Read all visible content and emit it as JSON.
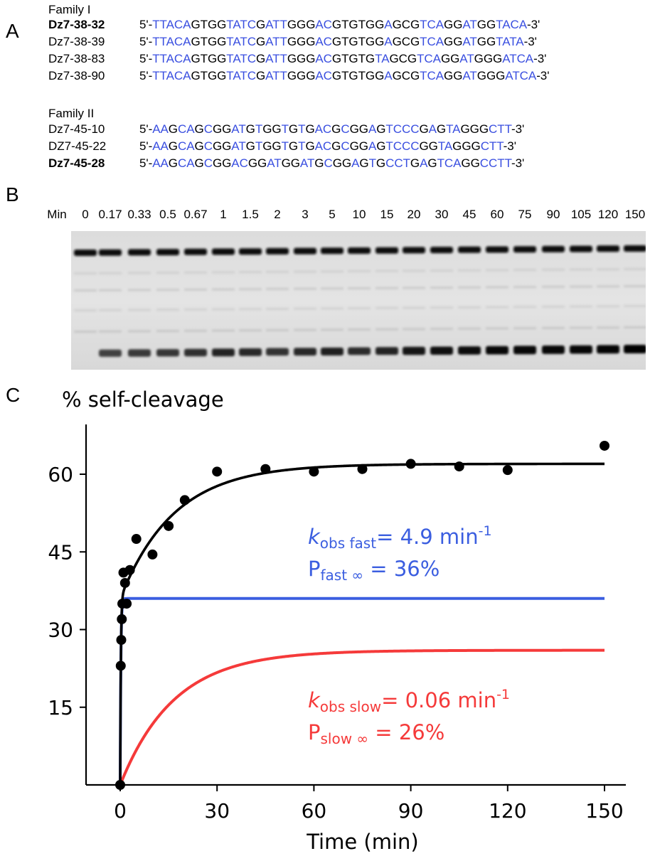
{
  "panel_a": {
    "letter": "A",
    "family1": {
      "title": "Family I",
      "rows": [
        {
          "name": "Dz7-38-32",
          "bold": true,
          "segments": [
            [
              "k",
              "5'-"
            ],
            [
              "b",
              "TTACA"
            ],
            [
              "k",
              "GTGG"
            ],
            [
              "b",
              "TATC"
            ],
            [
              "k",
              "G"
            ],
            [
              "b",
              "ATT"
            ],
            [
              "k",
              "GGG"
            ],
            [
              "b",
              "AC"
            ],
            [
              "k",
              "GTGTGG"
            ],
            [
              "b",
              "A"
            ],
            [
              "k",
              "GCG"
            ],
            [
              "b",
              "TCA"
            ],
            [
              "k",
              "GG"
            ],
            [
              "b",
              "AT"
            ],
            [
              "k",
              "GG"
            ],
            [
              "b",
              "TACA"
            ],
            [
              "k",
              "-3'"
            ]
          ]
        },
        {
          "name": "Dz7-38-39",
          "bold": false,
          "segments": [
            [
              "k",
              "5'-"
            ],
            [
              "b",
              "TTACA"
            ],
            [
              "k",
              "GTGG"
            ],
            [
              "b",
              "TATC"
            ],
            [
              "k",
              "G"
            ],
            [
              "b",
              "ATT"
            ],
            [
              "k",
              "GGG"
            ],
            [
              "b",
              "AC"
            ],
            [
              "k",
              "GTGTGG"
            ],
            [
              "b",
              "A"
            ],
            [
              "k",
              "GCG"
            ],
            [
              "b",
              "TCA"
            ],
            [
              "k",
              "GG"
            ],
            [
              "b",
              "AT"
            ],
            [
              "k",
              "GG"
            ],
            [
              "b",
              "TATA"
            ],
            [
              "k",
              "-3'"
            ]
          ]
        },
        {
          "name": "Dz7-38-83",
          "bold": false,
          "segments": [
            [
              "k",
              "5'-"
            ],
            [
              "b",
              "TTACA"
            ],
            [
              "k",
              "GTGG"
            ],
            [
              "b",
              "TATC"
            ],
            [
              "k",
              "G"
            ],
            [
              "b",
              "ATT"
            ],
            [
              "k",
              "GGG"
            ],
            [
              "b",
              "AC"
            ],
            [
              "k",
              "GTGTG"
            ],
            [
              "b",
              "TA"
            ],
            [
              "k",
              "GCG"
            ],
            [
              "b",
              "TCA"
            ],
            [
              "k",
              "GG"
            ],
            [
              "b",
              "AT"
            ],
            [
              "k",
              "GGG"
            ],
            [
              "b",
              "ATCA"
            ],
            [
              "k",
              "-3'"
            ]
          ]
        },
        {
          "name": "Dz7-38-90",
          "bold": false,
          "segments": [
            [
              "k",
              "5'-"
            ],
            [
              "b",
              "TTACA"
            ],
            [
              "k",
              "GTGG"
            ],
            [
              "b",
              "TATC"
            ],
            [
              "k",
              "G"
            ],
            [
              "b",
              "ATT"
            ],
            [
              "k",
              "GGG"
            ],
            [
              "b",
              "AC"
            ],
            [
              "k",
              "GTGTGG"
            ],
            [
              "b",
              "A"
            ],
            [
              "k",
              "GCG"
            ],
            [
              "b",
              "TCA"
            ],
            [
              "k",
              "GG"
            ],
            [
              "b",
              "AT"
            ],
            [
              "k",
              "GGG"
            ],
            [
              "b",
              "ATCA"
            ],
            [
              "k",
              "-3'"
            ]
          ]
        }
      ]
    },
    "family2": {
      "title": "Family II",
      "rows": [
        {
          "name": "Dz7-45-10",
          "bold": false,
          "segments": [
            [
              "k",
              "5'-"
            ],
            [
              "b",
              "AA"
            ],
            [
              "k",
              "G"
            ],
            [
              "b",
              "CA"
            ],
            [
              "k",
              "G"
            ],
            [
              "b",
              "C"
            ],
            [
              "k",
              "GG"
            ],
            [
              "b",
              "AT"
            ],
            [
              "k",
              "G"
            ],
            [
              "b",
              "T"
            ],
            [
              "k",
              "GG"
            ],
            [
              "b",
              "T"
            ],
            [
              "k",
              "G"
            ],
            [
              "b",
              "T"
            ],
            [
              "k",
              "G"
            ],
            [
              "b",
              "AC"
            ],
            [
              "k",
              "G"
            ],
            [
              "b",
              "C"
            ],
            [
              "k",
              "GG"
            ],
            [
              "b",
              "A"
            ],
            [
              "k",
              "G"
            ],
            [
              "b",
              "TCCC"
            ],
            [
              "k",
              "G"
            ],
            [
              "b",
              "A"
            ],
            [
              "k",
              "G"
            ],
            [
              "b",
              "TA"
            ],
            [
              "k",
              "GGG"
            ],
            [
              "b",
              "CTT"
            ],
            [
              "k",
              "-3'"
            ]
          ]
        },
        {
          "name": "DZ7-45-22",
          "bold": false,
          "segments": [
            [
              "k",
              "5'-"
            ],
            [
              "b",
              "AA"
            ],
            [
              "k",
              "G"
            ],
            [
              "b",
              "CA"
            ],
            [
              "k",
              "G"
            ],
            [
              "b",
              "C"
            ],
            [
              "k",
              "GG"
            ],
            [
              "b",
              "AT"
            ],
            [
              "k",
              "G"
            ],
            [
              "b",
              "T"
            ],
            [
              "k",
              "GG"
            ],
            [
              "b",
              "T"
            ],
            [
              "k",
              "G"
            ],
            [
              "b",
              "T"
            ],
            [
              "k",
              "G"
            ],
            [
              "b",
              "AC"
            ],
            [
              "k",
              "G"
            ],
            [
              "b",
              "C"
            ],
            [
              "k",
              "GG"
            ],
            [
              "b",
              "A"
            ],
            [
              "k",
              "G"
            ],
            [
              "b",
              "TCCC"
            ],
            [
              "k",
              "GG"
            ],
            [
              "b",
              "TA"
            ],
            [
              "k",
              "GGG"
            ],
            [
              "b",
              "CTT"
            ],
            [
              "k",
              "-3'"
            ]
          ]
        },
        {
          "name": "Dz7-45-28",
          "bold": true,
          "segments": [
            [
              "k",
              "5'-"
            ],
            [
              "b",
              "AA"
            ],
            [
              "k",
              "G"
            ],
            [
              "b",
              "CA"
            ],
            [
              "k",
              "G"
            ],
            [
              "b",
              "C"
            ],
            [
              "k",
              "GG"
            ],
            [
              "b",
              "AC"
            ],
            [
              "k",
              "GG"
            ],
            [
              "b",
              "AT"
            ],
            [
              "k",
              "GG"
            ],
            [
              "b",
              "AT"
            ],
            [
              "k",
              "G"
            ],
            [
              "b",
              "C"
            ],
            [
              "k",
              "GG"
            ],
            [
              "b",
              "A"
            ],
            [
              "k",
              "G"
            ],
            [
              "b",
              "T"
            ],
            [
              "k",
              "G"
            ],
            [
              "b",
              "CCT"
            ],
            [
              "k",
              "G"
            ],
            [
              "b",
              "A"
            ],
            [
              "k",
              "G"
            ],
            [
              "b",
              "TCA"
            ],
            [
              "k",
              "GG"
            ],
            [
              "b",
              "CCTT"
            ],
            [
              "k",
              "-3'"
            ]
          ]
        }
      ]
    }
  },
  "panel_b": {
    "letter": "B",
    "min_label": "Min",
    "lanes": [
      "0",
      "0.17",
      "0.33",
      "0.5",
      "0.67",
      "1",
      "1.5",
      "2",
      "3",
      "5",
      "10",
      "15",
      "20",
      "30",
      "45",
      "60",
      "75",
      "90",
      "105",
      "120",
      "150"
    ],
    "lower_band_intensity": [
      0.0,
      0.55,
      0.6,
      0.62,
      0.66,
      0.75,
      0.72,
      0.65,
      0.72,
      0.78,
      0.7,
      0.75,
      0.85,
      0.9,
      0.92,
      0.95,
      0.95,
      0.95,
      0.95,
      0.97,
      1.0
    ]
  },
  "panel_c": {
    "letter": "C",
    "colors": {
      "black": "#000000",
      "blue": "#3b5ee0",
      "red": "#f53a3a"
    },
    "fast_label": {
      "k_italic": "k",
      "k_sub": "obs fast",
      "k_value": "= 4.9 min",
      "k_sup": "-1",
      "p_letter": "P",
      "p_sub": "fast ∞",
      "p_value": " = 36%"
    },
    "slow_label": {
      "k_italic": "k",
      "k_sub": "obs slow",
      "k_value": "= 0.06 min",
      "k_sup": "-1",
      "p_letter": "P",
      "p_sub": "slow ∞",
      "p_value": " = 26%"
    }
  },
  "chart_data": {
    "type": "scatter",
    "title": "",
    "ylabel": "% self-cleavage",
    "xlabel": "Time (min)",
    "xlim": [
      -10,
      160
    ],
    "ylim": [
      0,
      66
    ],
    "xticks": [
      0,
      30,
      60,
      90,
      120,
      150
    ],
    "yticks": [
      15,
      30,
      45,
      60
    ],
    "grid": false,
    "series": [
      {
        "points": [
          [
            0,
            0
          ],
          [
            0.17,
            23
          ],
          [
            0.33,
            28
          ],
          [
            0.5,
            32
          ],
          [
            0.67,
            35
          ],
          [
            1,
            41
          ],
          [
            1.5,
            39
          ],
          [
            2,
            35
          ],
          [
            3,
            41.5
          ],
          [
            5,
            47.5
          ],
          [
            10,
            44.5
          ],
          [
            15,
            50
          ],
          [
            20,
            55
          ],
          [
            30,
            60.5
          ],
          [
            45,
            61
          ],
          [
            60,
            60.5
          ],
          [
            75,
            61
          ],
          [
            90,
            62
          ],
          [
            105,
            61.5
          ],
          [
            120,
            60.8
          ],
          [
            150,
            65.5
          ]
        ]
      },
      {
        "curve": "double_exponential",
        "k_fast": 4.9,
        "k_slow": 0.06,
        "p_fast": 36,
        "p_slow": 26
      },
      {
        "curve": "single_exponential",
        "k": 4.9,
        "plateau": 36
      },
      {
        "curve": "single_exponential",
        "k": 0.06,
        "plateau": 26
      }
    ]
  }
}
